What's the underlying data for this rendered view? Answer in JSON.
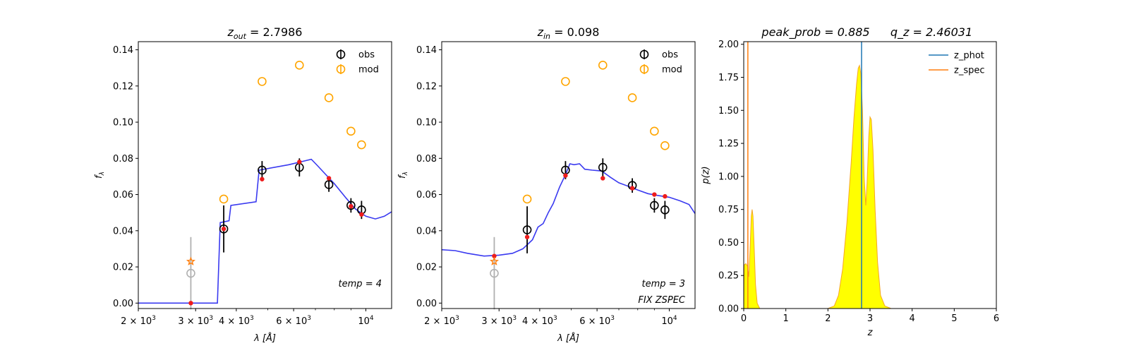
{
  "chart_data": [
    {
      "type": "scatter",
      "title_main": "z",
      "title_sub": "out",
      "title_value": "= 2.7986",
      "xlabel": "λ [Å]",
      "ylabel": "f",
      "ylabel_sub": "λ",
      "xscale": "log",
      "xlim": [
        2000,
        12000
      ],
      "ylim": [
        -0.003,
        0.1445
      ],
      "xticks": [
        {
          "value": 2000,
          "label": "2 × 10³"
        },
        {
          "value": 3000,
          "label": "3 × 10³"
        },
        {
          "value": 4000,
          "label": "4 × 10³"
        },
        {
          "value": 6000,
          "label": "6 × 10³"
        },
        {
          "value": 10000,
          "label": "10⁴"
        }
      ],
      "yticks": [
        "0.00",
        "0.02",
        "0.04",
        "0.06",
        "0.08",
        "0.10",
        "0.12",
        "0.14"
      ],
      "legend": {
        "position": "top-right",
        "entries": [
          "obs",
          "mod"
        ]
      },
      "annotations": [
        "temp = 4"
      ],
      "template_curve": [
        [
          2000,
          0
        ],
        [
          3500,
          0
        ],
        [
          3570,
          0.0445
        ],
        [
          3800,
          0.0455
        ],
        [
          3850,
          0.054
        ],
        [
          4600,
          0.056
        ],
        [
          4700,
          0.0735
        ],
        [
          5800,
          0.0765
        ],
        [
          6800,
          0.0795
        ],
        [
          7100,
          0.076
        ],
        [
          8000,
          0.066
        ],
        [
          8700,
          0.058
        ],
        [
          9300,
          0.052
        ],
        [
          10000,
          0.048
        ],
        [
          10700,
          0.0465
        ],
        [
          11400,
          0.048
        ],
        [
          12000,
          0.0505
        ]
      ],
      "obs": [
        {
          "x": 2900,
          "y": 0.0165,
          "err": 0.02,
          "faded": true
        },
        {
          "x": 3660,
          "y": 0.041,
          "err": 0.013
        },
        {
          "x": 4800,
          "y": 0.0735,
          "err": 0.005
        },
        {
          "x": 6250,
          "y": 0.075,
          "err": 0.005
        },
        {
          "x": 7700,
          "y": 0.0655,
          "err": 0.004
        },
        {
          "x": 9000,
          "y": 0.054,
          "err": 0.004
        },
        {
          "x": 9700,
          "y": 0.0515,
          "err": 0.005
        }
      ],
      "mod": [
        {
          "x": 2900,
          "y": 0.023,
          "star": true
        },
        {
          "x": 3660,
          "y": 0.0575
        },
        {
          "x": 4800,
          "y": 0.1225
        },
        {
          "x": 6250,
          "y": 0.1315
        },
        {
          "x": 7700,
          "y": 0.1135
        },
        {
          "x": 9000,
          "y": 0.095
        },
        {
          "x": 9700,
          "y": 0.0875
        }
      ],
      "synthetic": [
        [
          2900,
          0
        ],
        [
          3660,
          0.041
        ],
        [
          4800,
          0.0685
        ],
        [
          6250,
          0.078
        ],
        [
          7700,
          0.069
        ],
        [
          9000,
          0.0535
        ],
        [
          9700,
          0.049
        ]
      ]
    },
    {
      "type": "scatter",
      "title_main": "z",
      "title_sub": "in",
      "title_value": "= 0.098",
      "xlabel": "λ [Å]",
      "ylabel": "f",
      "ylabel_sub": "λ",
      "xscale": "log",
      "xlim": [
        2000,
        12000
      ],
      "ylim": [
        -0.003,
        0.1445
      ],
      "xticks": [
        {
          "value": 2000,
          "label": "2 × 10³"
        },
        {
          "value": 3000,
          "label": "3 × 10³"
        },
        {
          "value": 4000,
          "label": "4 × 10³"
        },
        {
          "value": 6000,
          "label": "6 × 10³"
        },
        {
          "value": 10000,
          "label": "10⁴"
        }
      ],
      "yticks": [
        "0.00",
        "0.02",
        "0.04",
        "0.06",
        "0.08",
        "0.10",
        "0.12",
        "0.14"
      ],
      "legend": {
        "position": "top-right",
        "entries": [
          "obs",
          "mod"
        ]
      },
      "annotations": [
        "temp = 3",
        "FIX ZSPEC"
      ],
      "template_curve": [
        [
          2000,
          0.0295
        ],
        [
          2200,
          0.029
        ],
        [
          2400,
          0.0275
        ],
        [
          2700,
          0.026
        ],
        [
          3000,
          0.0265
        ],
        [
          3300,
          0.0275
        ],
        [
          3550,
          0.03
        ],
        [
          3800,
          0.035
        ],
        [
          3950,
          0.042
        ],
        [
          4100,
          0.044
        ],
        [
          4250,
          0.05
        ],
        [
          4400,
          0.055
        ],
        [
          4600,
          0.064
        ],
        [
          4800,
          0.071
        ],
        [
          4950,
          0.077
        ],
        [
          5100,
          0.0765
        ],
        [
          5300,
          0.077
        ],
        [
          5500,
          0.074
        ],
        [
          5800,
          0.0735
        ],
        [
          6200,
          0.073
        ],
        [
          6600,
          0.0695
        ],
        [
          7000,
          0.0665
        ],
        [
          7500,
          0.0645
        ],
        [
          8000,
          0.0625
        ],
        [
          8600,
          0.0605
        ],
        [
          9200,
          0.0595
        ],
        [
          10000,
          0.0585
        ],
        [
          10800,
          0.0565
        ],
        [
          11500,
          0.0545
        ],
        [
          12000,
          0.0495
        ]
      ],
      "obs": [
        {
          "x": 2900,
          "y": 0.0165,
          "err": 0.02,
          "faded": true
        },
        {
          "x": 3660,
          "y": 0.0405,
          "err": 0.013
        },
        {
          "x": 4800,
          "y": 0.0735,
          "err": 0.005
        },
        {
          "x": 6250,
          "y": 0.075,
          "err": 0.005
        },
        {
          "x": 7700,
          "y": 0.065,
          "err": 0.004
        },
        {
          "x": 9000,
          "y": 0.054,
          "err": 0.004
        },
        {
          "x": 9700,
          "y": 0.0515,
          "err": 0.005
        }
      ],
      "mod": [
        {
          "x": 2900,
          "y": 0.023,
          "star": true
        },
        {
          "x": 3660,
          "y": 0.0575
        },
        {
          "x": 4800,
          "y": 0.1225
        },
        {
          "x": 6250,
          "y": 0.1315
        },
        {
          "x": 7700,
          "y": 0.1135
        },
        {
          "x": 9000,
          "y": 0.095
        },
        {
          "x": 9700,
          "y": 0.087
        }
      ],
      "synthetic": [
        [
          2900,
          0.026
        ],
        [
          3660,
          0.0365
        ],
        [
          4800,
          0.0705
        ],
        [
          6250,
          0.069
        ],
        [
          7700,
          0.0635
        ],
        [
          9000,
          0.06
        ],
        [
          9700,
          0.059
        ]
      ]
    },
    {
      "type": "area",
      "title": "peak_prob = 0.885",
      "title2": "q_z = 2.46031",
      "xlabel": "z",
      "ylabel": "p(z)",
      "xlim": [
        0,
        6
      ],
      "ylim": [
        0,
        2.02
      ],
      "xticks": [
        "0",
        "1",
        "2",
        "3",
        "4",
        "5",
        "6"
      ],
      "yticks": [
        "0.00",
        "0.25",
        "0.50",
        "0.75",
        "1.00",
        "1.25",
        "1.50",
        "1.75",
        "2.00"
      ],
      "legend": {
        "position": "top-right",
        "entries": [
          "z_phot",
          "z_spec"
        ]
      },
      "z_phot": 2.7986,
      "z_spec": 0.098,
      "pdf": [
        [
          0,
          0
        ],
        [
          0.01,
          0.33
        ],
        [
          0.05,
          0.34
        ],
        [
          0.09,
          0.32
        ],
        [
          0.12,
          0.24
        ],
        [
          0.15,
          0.45
        ],
        [
          0.18,
          0.7
        ],
        [
          0.2,
          0.75
        ],
        [
          0.22,
          0.7
        ],
        [
          0.25,
          0.45
        ],
        [
          0.28,
          0.18
        ],
        [
          0.32,
          0.04
        ],
        [
          0.38,
          0
        ],
        [
          2.0,
          0
        ],
        [
          2.15,
          0.02
        ],
        [
          2.25,
          0.1
        ],
        [
          2.35,
          0.3
        ],
        [
          2.45,
          0.65
        ],
        [
          2.55,
          1.1
        ],
        [
          2.62,
          1.45
        ],
        [
          2.68,
          1.7
        ],
        [
          2.72,
          1.82
        ],
        [
          2.75,
          1.84
        ],
        [
          2.78,
          1.78
        ],
        [
          2.82,
          1.5
        ],
        [
          2.86,
          1.0
        ],
        [
          2.9,
          0.78
        ],
        [
          2.93,
          0.95
        ],
        [
          2.97,
          1.3
        ],
        [
          3.0,
          1.45
        ],
        [
          3.03,
          1.43
        ],
        [
          3.07,
          1.2
        ],
        [
          3.12,
          0.75
        ],
        [
          3.18,
          0.35
        ],
        [
          3.25,
          0.1
        ],
        [
          3.35,
          0.02
        ],
        [
          3.5,
          0
        ],
        [
          5.0,
          0
        ]
      ],
      "colors": {
        "z_phot": "#1f77b4",
        "z_spec": "#ff7f0e",
        "fill": "#ffff00",
        "edge": "#f5a623"
      }
    }
  ],
  "colors": {
    "template": "#3a3af0",
    "obs": "#000000",
    "obs_faded": "#b0b0b0",
    "mod": "#ffa500",
    "mod_star": "#ff7f0e",
    "synthetic": "#ee1c1c"
  }
}
